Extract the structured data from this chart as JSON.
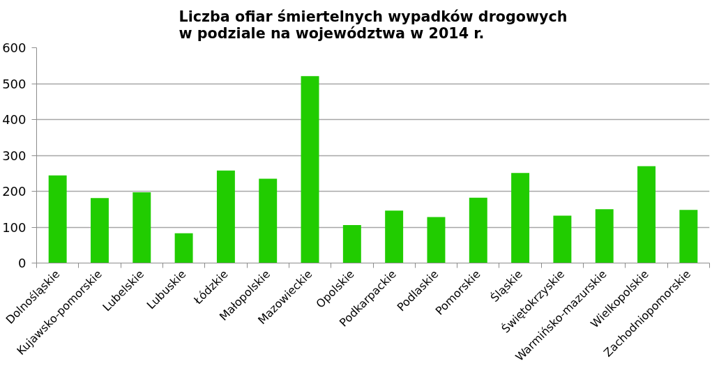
{
  "chart_data": {
    "type": "bar",
    "title": "Liczba ofiar śmiertelnych wypadków drogowych\nw podziale na województwa w 2014 r.",
    "categories": [
      "Dolnośląskie",
      "Kujawsko-pomorskie",
      "Lubelskie",
      "Lubuskie",
      "Łódzkie",
      "Małopolskie",
      "Mazowieckie",
      "Opolskie",
      "Podkarpackie",
      "Podlaskie",
      "Pomorskie",
      "Śląskie",
      "Świętokrzyskie",
      "Warmińsko-mazurskie",
      "Wielkopolskie",
      "Zachodniopomorskie"
    ],
    "values": [
      244,
      181,
      197,
      83,
      258,
      235,
      521,
      106,
      146,
      128,
      182,
      251,
      132,
      150,
      270,
      148
    ],
    "color": "#21cc00",
    "ylim": [
      0,
      600
    ],
    "yticks": [
      0,
      100,
      200,
      300,
      400,
      500,
      600
    ],
    "grid": "y"
  }
}
